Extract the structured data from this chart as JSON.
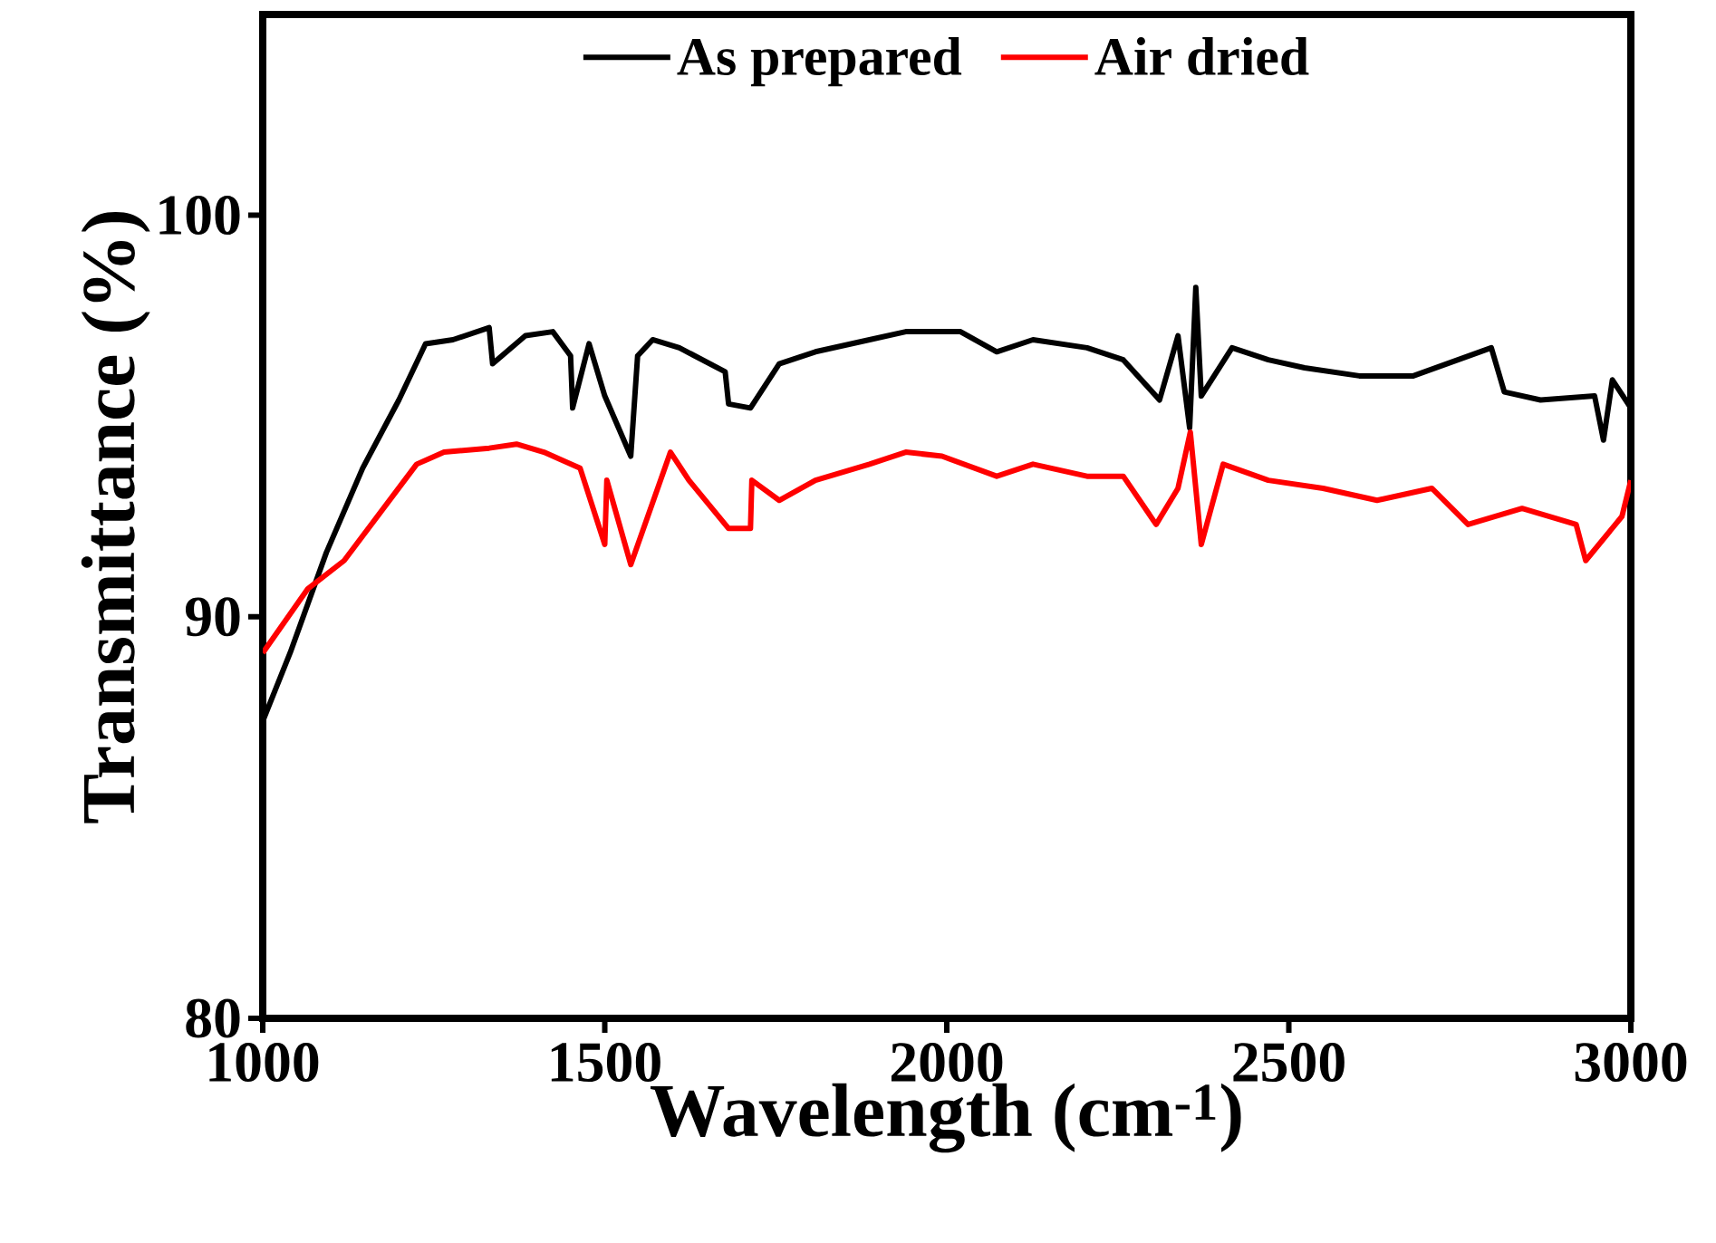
{
  "chart_data": {
    "type": "line",
    "xlabel": "Wavelength (cm$^{-1}$)",
    "ylabel": "Transmittance (%)",
    "xlim": [
      1000,
      3000
    ],
    "xticks": [
      1000,
      1500,
      2000,
      2500,
      3000
    ],
    "ylim": [
      80,
      105
    ],
    "yticks": [
      80,
      90,
      100
    ],
    "legend": "top",
    "series": [
      {
        "name": "As prepared",
        "color": "#000000",
        "x": [
          1000,
          1040,
          1093,
          1146,
          1199,
          1238,
          1278,
          1331,
          1336,
          1384,
          1424,
          1450,
          1453,
          1477,
          1500,
          1538,
          1548,
          1570,
          1609,
          1676,
          1681,
          1713,
          1755,
          1808,
          1887,
          1940,
          2020,
          2073,
          2126,
          2205,
          2258,
          2311,
          2338,
          2355,
          2364,
          2372,
          2417,
          2470,
          2523,
          2603,
          2682,
          2796,
          2815,
          2868,
          2947,
          2960,
          2973,
          3000
        ],
        "values": [
          87.4,
          89.1,
          91.6,
          93.7,
          95.4,
          96.8,
          96.9,
          97.2,
          96.3,
          97.0,
          97.1,
          96.5,
          95.2,
          96.8,
          95.5,
          94.0,
          96.5,
          96.9,
          96.7,
          96.1,
          95.3,
          95.2,
          96.3,
          96.6,
          96.9,
          97.1,
          97.1,
          96.6,
          96.9,
          96.7,
          96.4,
          95.4,
          97.0,
          94.7,
          98.2,
          95.5,
          96.7,
          96.4,
          96.2,
          96.0,
          96.0,
          96.7,
          95.6,
          95.4,
          95.5,
          94.4,
          95.9,
          95.2
        ]
      },
      {
        "name": "Air dried",
        "color": "#ff0000",
        "x": [
          1000,
          1066,
          1119,
          1172,
          1225,
          1265,
          1331,
          1371,
          1411,
          1464,
          1500,
          1503,
          1538,
          1596,
          1623,
          1681,
          1713,
          1715,
          1755,
          1808,
          1887,
          1940,
          1993,
          2073,
          2126,
          2205,
          2258,
          2306,
          2338,
          2356,
          2372,
          2404,
          2470,
          2550,
          2629,
          2709,
          2762,
          2841,
          2920,
          2934,
          2987,
          3000
        ],
        "values": [
          89.1,
          90.7,
          91.4,
          92.6,
          93.8,
          94.1,
          94.2,
          94.3,
          94.1,
          93.7,
          91.8,
          93.4,
          91.3,
          94.1,
          93.4,
          92.2,
          92.2,
          93.4,
          92.9,
          93.4,
          93.8,
          94.1,
          94.0,
          93.5,
          93.8,
          93.5,
          93.5,
          92.3,
          93.2,
          94.6,
          91.8,
          93.8,
          93.4,
          93.2,
          92.9,
          93.2,
          92.3,
          92.7,
          92.3,
          91.4,
          92.5,
          93.4
        ]
      }
    ]
  }
}
